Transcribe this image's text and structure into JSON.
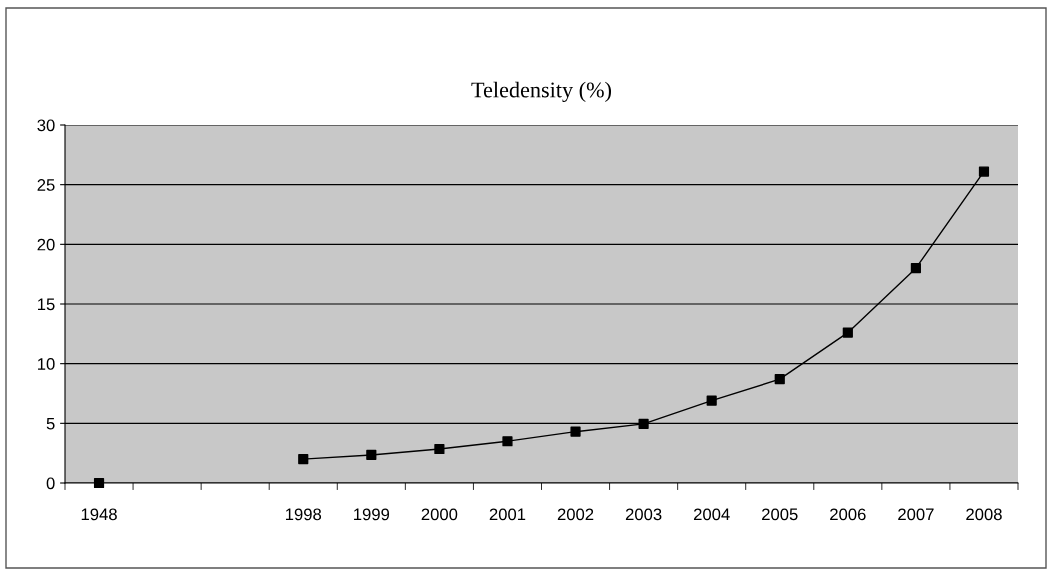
{
  "chart_data": {
    "type": "line",
    "title": "Teledensity (%)",
    "categories": [
      "1948",
      null,
      null,
      "1998",
      "1999",
      "2000",
      "2001",
      "2002",
      "2003",
      "2004",
      "2005",
      "2006",
      "2007",
      "2008"
    ],
    "series": [
      {
        "color": "#000000",
        "values": [
          0.0,
          null,
          null,
          2.0,
          2.35,
          2.85,
          3.5,
          4.3,
          4.95,
          6.9,
          8.7,
          12.6,
          18.0,
          26.1
        ]
      }
    ],
    "ylim": [
      0,
      30
    ],
    "yticks": [
      0,
      5,
      10,
      15,
      20,
      25,
      30
    ],
    "grid": "y",
    "marker": "square",
    "line_style": "solid"
  }
}
